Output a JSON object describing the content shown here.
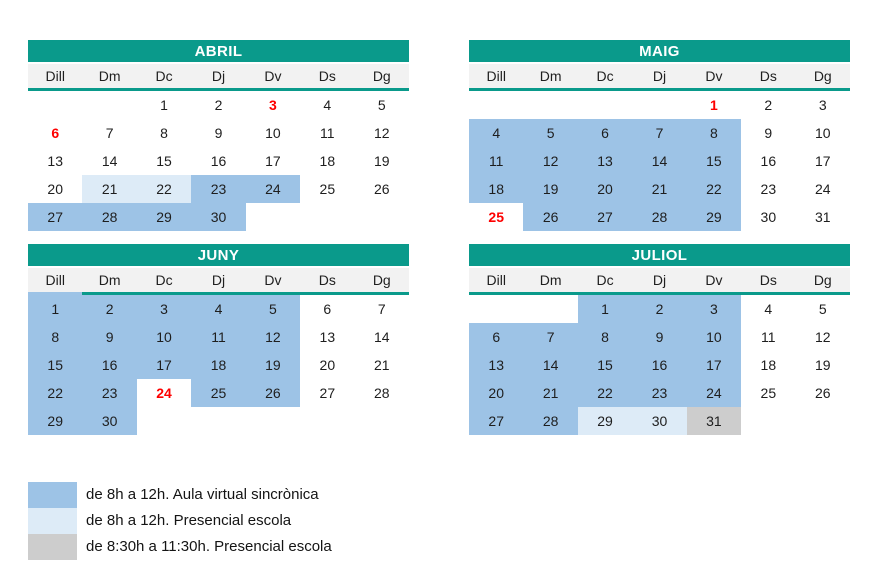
{
  "colors": {
    "header_teal": "#0a9a8b",
    "fill_aula_virtual": "#9dc3e6",
    "fill_presencial_escola": "#ddebf7",
    "fill_presencial_escola_gris": "#cdcdcd",
    "holiday_red": "#fe0000",
    "weekday_header_bg": "#f2f2f2"
  },
  "day_headers": [
    "Dill",
    "Dm",
    "Dc",
    "Dj",
    "Dv",
    "Ds",
    "Dg"
  ],
  "months": [
    {
      "title": "ABRIL",
      "weeks": [
        [
          {},
          {},
          {
            "d": "1"
          },
          {
            "d": "2"
          },
          {
            "d": "3",
            "red": true
          },
          {
            "d": "4"
          },
          {
            "d": "5"
          }
        ],
        [
          {
            "d": "6",
            "red": true
          },
          {
            "d": "7"
          },
          {
            "d": "8"
          },
          {
            "d": "9"
          },
          {
            "d": "10"
          },
          {
            "d": "11"
          },
          {
            "d": "12"
          }
        ],
        [
          {
            "d": "13"
          },
          {
            "d": "14"
          },
          {
            "d": "15"
          },
          {
            "d": "16"
          },
          {
            "d": "17"
          },
          {
            "d": "18"
          },
          {
            "d": "19"
          }
        ],
        [
          {
            "d": "20"
          },
          {
            "d": "21",
            "fill": "pe"
          },
          {
            "d": "22",
            "fill": "pe"
          },
          {
            "d": "23",
            "fill": "av"
          },
          {
            "d": "24",
            "fill": "av"
          },
          {
            "d": "25"
          },
          {
            "d": "26"
          }
        ],
        [
          {
            "d": "27",
            "fill": "av"
          },
          {
            "d": "28",
            "fill": "av"
          },
          {
            "d": "29",
            "fill": "av"
          },
          {
            "d": "30",
            "fill": "av"
          },
          {},
          {},
          {}
        ]
      ]
    },
    {
      "title": "MAIG",
      "weeks": [
        [
          {},
          {},
          {},
          {},
          {
            "d": "1",
            "red": true
          },
          {
            "d": "2"
          },
          {
            "d": "3"
          }
        ],
        [
          {
            "d": "4",
            "fill": "av"
          },
          {
            "d": "5",
            "fill": "av"
          },
          {
            "d": "6",
            "fill": "av"
          },
          {
            "d": "7",
            "fill": "av"
          },
          {
            "d": "8",
            "fill": "av"
          },
          {
            "d": "9"
          },
          {
            "d": "10"
          }
        ],
        [
          {
            "d": "11",
            "fill": "av"
          },
          {
            "d": "12",
            "fill": "av"
          },
          {
            "d": "13",
            "fill": "av"
          },
          {
            "d": "14",
            "fill": "av"
          },
          {
            "d": "15",
            "fill": "av"
          },
          {
            "d": "16"
          },
          {
            "d": "17"
          }
        ],
        [
          {
            "d": "18",
            "fill": "av"
          },
          {
            "d": "19",
            "fill": "av"
          },
          {
            "d": "20",
            "fill": "av"
          },
          {
            "d": "21",
            "fill": "av"
          },
          {
            "d": "22",
            "fill": "av"
          },
          {
            "d": "23"
          },
          {
            "d": "24"
          }
        ],
        [
          {
            "d": "25",
            "red": true
          },
          {
            "d": "26",
            "fill": "av"
          },
          {
            "d": "27",
            "fill": "av"
          },
          {
            "d": "28",
            "fill": "av"
          },
          {
            "d": "29",
            "fill": "av"
          },
          {
            "d": "30"
          },
          {
            "d": "31"
          }
        ]
      ]
    },
    {
      "title": "JUNY",
      "dow_underline_first_blue": true,
      "weeks": [
        [
          {
            "d": "1",
            "fill": "av"
          },
          {
            "d": "2",
            "fill": "av"
          },
          {
            "d": "3",
            "fill": "av"
          },
          {
            "d": "4",
            "fill": "av"
          },
          {
            "d": "5",
            "fill": "av"
          },
          {
            "d": "6"
          },
          {
            "d": "7"
          }
        ],
        [
          {
            "d": "8",
            "fill": "av"
          },
          {
            "d": "9",
            "fill": "av"
          },
          {
            "d": "10",
            "fill": "av"
          },
          {
            "d": "11",
            "fill": "av"
          },
          {
            "d": "12",
            "fill": "av"
          },
          {
            "d": "13"
          },
          {
            "d": "14"
          }
        ],
        [
          {
            "d": "15",
            "fill": "av"
          },
          {
            "d": "16",
            "fill": "av"
          },
          {
            "d": "17",
            "fill": "av"
          },
          {
            "d": "18",
            "fill": "av"
          },
          {
            "d": "19",
            "fill": "av"
          },
          {
            "d": "20"
          },
          {
            "d": "21"
          }
        ],
        [
          {
            "d": "22",
            "fill": "av"
          },
          {
            "d": "23",
            "fill": "av"
          },
          {
            "d": "24",
            "red": true
          },
          {
            "d": "25",
            "fill": "av"
          },
          {
            "d": "26",
            "fill": "av"
          },
          {
            "d": "27"
          },
          {
            "d": "28"
          }
        ],
        [
          {
            "d": "29",
            "fill": "av"
          },
          {
            "d": "30",
            "fill": "av"
          },
          {},
          {},
          {},
          {},
          {}
        ]
      ]
    },
    {
      "title": "JULIOL",
      "weeks": [
        [
          {},
          {},
          {
            "d": "1",
            "fill": "av"
          },
          {
            "d": "2",
            "fill": "av"
          },
          {
            "d": "3",
            "fill": "av"
          },
          {
            "d": "4"
          },
          {
            "d": "5"
          }
        ],
        [
          {
            "d": "6",
            "fill": "av"
          },
          {
            "d": "7",
            "fill": "av"
          },
          {
            "d": "8",
            "fill": "av"
          },
          {
            "d": "9",
            "fill": "av"
          },
          {
            "d": "10",
            "fill": "av"
          },
          {
            "d": "11"
          },
          {
            "d": "12"
          }
        ],
        [
          {
            "d": "13",
            "fill": "av"
          },
          {
            "d": "14",
            "fill": "av"
          },
          {
            "d": "15",
            "fill": "av"
          },
          {
            "d": "16",
            "fill": "av"
          },
          {
            "d": "17",
            "fill": "av"
          },
          {
            "d": "18"
          },
          {
            "d": "19"
          }
        ],
        [
          {
            "d": "20",
            "fill": "av"
          },
          {
            "d": "21",
            "fill": "av"
          },
          {
            "d": "22",
            "fill": "av"
          },
          {
            "d": "23",
            "fill": "av"
          },
          {
            "d": "24",
            "fill": "av"
          },
          {
            "d": "25"
          },
          {
            "d": "26"
          }
        ],
        [
          {
            "d": "27",
            "fill": "av"
          },
          {
            "d": "28",
            "fill": "av"
          },
          {
            "d": "29",
            "fill": "pe"
          },
          {
            "d": "30",
            "fill": "pe"
          },
          {
            "d": "31",
            "fill": "pg"
          },
          {},
          {}
        ]
      ]
    }
  ],
  "legend": {
    "items": [
      {
        "fill": "av",
        "label": "de 8h a 12h. Aula virtual sincrònica"
      },
      {
        "fill": "pe",
        "label": "de 8h a 12h. Presencial escola"
      },
      {
        "fill": "pg",
        "label": "de 8:30h a 11:30h. Presencial escola"
      }
    ]
  }
}
